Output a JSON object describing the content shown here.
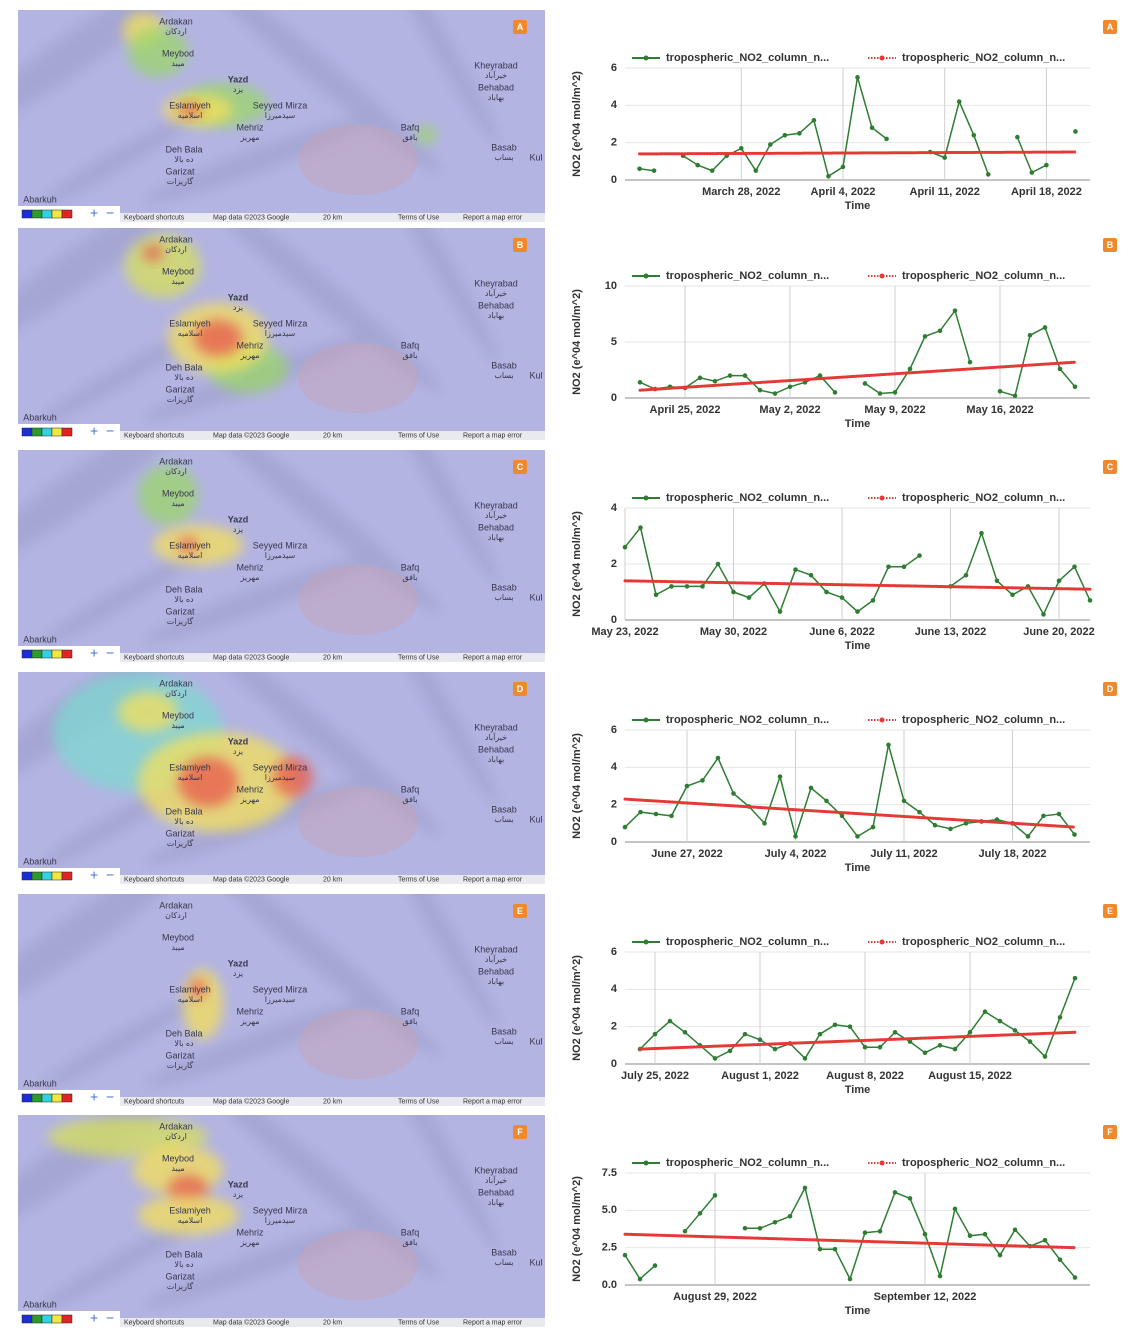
{
  "map": {
    "places": [
      {
        "name": "Ardakan",
        "local": "اردکان"
      },
      {
        "name": "Meybod",
        "local": "میبد"
      },
      {
        "name": "Yazd",
        "local": "یزد"
      },
      {
        "name": "Eslamiyeh",
        "local": "اسلامیه"
      },
      {
        "name": "Seyyed Mirza",
        "local": "سیدمیرزا"
      },
      {
        "name": "Mehriz",
        "local": "مهریز"
      },
      {
        "name": "Deh Bala",
        "local": "ده بالا"
      },
      {
        "name": "Garizat",
        "local": "گاریزات"
      },
      {
        "name": "Abarkuh",
        "local": ""
      },
      {
        "name": "Kheyrabad",
        "local": "خیرآباد"
      },
      {
        "name": "Behabad",
        "local": "بهاباد"
      },
      {
        "name": "Bafq",
        "local": "بافق"
      },
      {
        "name": "Basab",
        "local": "بساب"
      },
      {
        "name": "Kul",
        "local": ""
      }
    ],
    "zoom_in": "+",
    "zoom_out": "−",
    "footer": [
      "Keyboard shortcuts",
      "Map data ©2023 Google",
      "20 km",
      "Terms of Use",
      "Report a map error"
    ]
  },
  "chart_data": [
    {
      "type": "line",
      "label": "A",
      "y_label": "NO2 (e^04 mol/m^2)",
      "x_label": "Time",
      "grid": true,
      "xlim": [
        "2022-03-20",
        "2022-04-21"
      ],
      "ylim": [
        0,
        6
      ],
      "yticks": [
        0,
        2,
        4,
        6
      ],
      "xticks": [
        {
          "value": "2022-03-28",
          "label": "March 28, 2022"
        },
        {
          "value": "2022-04-04",
          "label": "April 4, 2022"
        },
        {
          "value": "2022-04-11",
          "label": "April 11, 2022"
        },
        {
          "value": "2022-04-18",
          "label": "April 18, 2022"
        }
      ],
      "series": [
        {
          "name": "tropospheric_NO2_column_n...",
          "color": "#2e7d32",
          "style": "solid",
          "x": [
            "2022-03-21",
            "2022-03-22",
            "2022-03-23",
            "2022-03-24",
            "2022-03-25",
            "2022-03-26",
            "2022-03-27",
            "2022-03-28",
            "2022-03-29",
            "2022-03-30",
            "2022-03-31",
            "2022-04-01",
            "2022-04-02",
            "2022-04-03",
            "2022-04-04",
            "2022-04-05",
            "2022-04-06",
            "2022-04-07",
            "2022-04-08",
            "2022-04-09",
            "2022-04-10",
            "2022-04-11",
            "2022-04-12",
            "2022-04-13",
            "2022-04-14",
            "2022-04-15",
            "2022-04-16",
            "2022-04-17",
            "2022-04-18",
            "2022-04-19",
            "2022-04-20"
          ],
          "values": [
            0.6,
            0.5,
            null,
            1.3,
            0.8,
            0.5,
            1.3,
            1.7,
            0.5,
            1.9,
            2.4,
            2.5,
            3.2,
            0.2,
            0.7,
            5.5,
            2.8,
            2.2,
            null,
            null,
            1.5,
            1.2,
            4.2,
            2.4,
            0.3,
            null,
            2.3,
            0.4,
            0.8,
            null,
            2.6
          ]
        },
        {
          "name": "tropospheric_NO2_column_n...",
          "color": "#e53935",
          "style": "dotted",
          "x": [
            "2022-03-21",
            "2022-04-20"
          ],
          "values": [
            1.4,
            1.5
          ]
        }
      ]
    },
    {
      "type": "line",
      "label": "B",
      "y_label": "NO2 (e^04 mol/m^2)",
      "x_label": "Time",
      "grid": true,
      "xlim": [
        "2022-04-21",
        "2022-05-22"
      ],
      "ylim": [
        0,
        10
      ],
      "yticks": [
        0,
        5,
        10
      ],
      "xticks": [
        {
          "value": "2022-04-25",
          "label": "April 25, 2022"
        },
        {
          "value": "2022-05-02",
          "label": "May 2, 2022"
        },
        {
          "value": "2022-05-09",
          "label": "May 9, 2022"
        },
        {
          "value": "2022-05-16",
          "label": "May 16, 2022"
        }
      ],
      "series": [
        {
          "name": "tropospheric_NO2_column_n...",
          "color": "#2e7d32",
          "style": "solid",
          "x": [
            "2022-04-22",
            "2022-04-23",
            "2022-04-24",
            "2022-04-25",
            "2022-04-26",
            "2022-04-27",
            "2022-04-28",
            "2022-04-29",
            "2022-04-30",
            "2022-05-01",
            "2022-05-02",
            "2022-05-03",
            "2022-05-04",
            "2022-05-05",
            "2022-05-06",
            "2022-05-07",
            "2022-05-08",
            "2022-05-09",
            "2022-05-10",
            "2022-05-11",
            "2022-05-12",
            "2022-05-13",
            "2022-05-14",
            "2022-05-15",
            "2022-05-16",
            "2022-05-17",
            "2022-05-18",
            "2022-05-19",
            "2022-05-20",
            "2022-05-21"
          ],
          "values": [
            1.4,
            0.8,
            1.0,
            0.9,
            1.8,
            1.5,
            2.0,
            2.0,
            0.7,
            0.4,
            1.0,
            1.4,
            2.0,
            0.5,
            null,
            1.3,
            0.4,
            0.5,
            2.6,
            5.5,
            6.0,
            7.8,
            3.2,
            null,
            0.6,
            0.2,
            5.6,
            6.3,
            2.6,
            1.0
          ]
        },
        {
          "name": "tropospheric_NO2_column_n...",
          "color": "#e53935",
          "style": "dotted",
          "x": [
            "2022-04-22",
            "2022-05-21"
          ],
          "values": [
            0.7,
            3.2
          ]
        }
      ]
    },
    {
      "type": "line",
      "label": "C",
      "y_label": "NO2 (e^04 mol/m^2)",
      "x_label": "Time",
      "grid": true,
      "xlim": [
        "2022-05-23",
        "2022-06-22"
      ],
      "ylim": [
        0,
        4
      ],
      "yticks": [
        0,
        2,
        4
      ],
      "xticks": [
        {
          "value": "2022-05-23",
          "label": "May 23, 2022"
        },
        {
          "value": "2022-05-30",
          "label": "May 30, 2022"
        },
        {
          "value": "2022-06-06",
          "label": "June 6, 2022"
        },
        {
          "value": "2022-06-13",
          "label": "June 13, 2022"
        },
        {
          "value": "2022-06-20",
          "label": "June 20, 2022"
        }
      ],
      "series": [
        {
          "name": "tropospheric_NO2_column_n...",
          "color": "#2e7d32",
          "style": "solid",
          "x": [
            "2022-05-23",
            "2022-05-24",
            "2022-05-25",
            "2022-05-26",
            "2022-05-27",
            "2022-05-28",
            "2022-05-29",
            "2022-05-30",
            "2022-05-31",
            "2022-06-01",
            "2022-06-02",
            "2022-06-03",
            "2022-06-04",
            "2022-06-05",
            "2022-06-06",
            "2022-06-07",
            "2022-06-08",
            "2022-06-09",
            "2022-06-10",
            "2022-06-11",
            "2022-06-12",
            "2022-06-13",
            "2022-06-14",
            "2022-06-15",
            "2022-06-16",
            "2022-06-17",
            "2022-06-18",
            "2022-06-19",
            "2022-06-20",
            "2022-06-21",
            "2022-06-22"
          ],
          "values": [
            2.6,
            3.3,
            0.9,
            1.2,
            1.2,
            1.2,
            2.0,
            1.0,
            0.8,
            1.3,
            0.3,
            1.8,
            1.6,
            1.0,
            0.8,
            0.3,
            0.7,
            1.9,
            1.9,
            2.3,
            null,
            1.2,
            1.6,
            3.1,
            1.4,
            0.9,
            1.2,
            0.2,
            1.4,
            1.9,
            0.7
          ]
        },
        {
          "name": "tropospheric_NO2_column_n...",
          "color": "#e53935",
          "style": "dotted",
          "x": [
            "2022-05-23",
            "2022-06-22"
          ],
          "values": [
            1.4,
            1.1
          ]
        }
      ]
    },
    {
      "type": "line",
      "label": "D",
      "y_label": "NO2 (e^04 mol/m^2)",
      "x_label": "Time",
      "grid": true,
      "xlim": [
        "2022-06-23",
        "2022-07-23"
      ],
      "ylim": [
        0,
        6
      ],
      "yticks": [
        0,
        2,
        4,
        6
      ],
      "xticks": [
        {
          "value": "2022-06-27",
          "label": "June 27, 2022"
        },
        {
          "value": "2022-07-04",
          "label": "July 4, 2022"
        },
        {
          "value": "2022-07-11",
          "label": "July 11, 2022"
        },
        {
          "value": "2022-07-18",
          "label": "July 18, 2022"
        }
      ],
      "series": [
        {
          "name": "tropospheric_NO2_column_n...",
          "color": "#2e7d32",
          "style": "solid",
          "x": [
            "2022-06-23",
            "2022-06-24",
            "2022-06-25",
            "2022-06-26",
            "2022-06-27",
            "2022-06-28",
            "2022-06-29",
            "2022-06-30",
            "2022-07-01",
            "2022-07-02",
            "2022-07-03",
            "2022-07-04",
            "2022-07-05",
            "2022-07-06",
            "2022-07-07",
            "2022-07-08",
            "2022-07-09",
            "2022-07-10",
            "2022-07-11",
            "2022-07-12",
            "2022-07-13",
            "2022-07-14",
            "2022-07-15",
            "2022-07-16",
            "2022-07-17",
            "2022-07-18",
            "2022-07-19",
            "2022-07-20",
            "2022-07-21",
            "2022-07-22"
          ],
          "values": [
            0.8,
            1.6,
            1.5,
            1.4,
            3.0,
            3.3,
            4.5,
            2.6,
            1.9,
            1.0,
            3.5,
            0.3,
            2.9,
            2.2,
            1.4,
            0.3,
            0.8,
            5.2,
            2.2,
            1.6,
            0.9,
            0.7,
            1.0,
            1.1,
            1.2,
            1.0,
            0.3,
            1.4,
            1.5,
            0.4
          ]
        },
        {
          "name": "tropospheric_NO2_column_n...",
          "color": "#e53935",
          "style": "dotted",
          "x": [
            "2022-06-23",
            "2022-07-22"
          ],
          "values": [
            2.3,
            0.8
          ]
        }
      ]
    },
    {
      "type": "line",
      "label": "E",
      "y_label": "NO2 (e^04 mol/m^2)",
      "x_label": "Time",
      "grid": true,
      "xlim": [
        "2022-07-23",
        "2022-08-23"
      ],
      "ylim": [
        0,
        6
      ],
      "yticks": [
        0,
        2,
        4,
        6
      ],
      "xticks": [
        {
          "value": "2022-07-25",
          "label": "July 25, 2022"
        },
        {
          "value": "2022-08-01",
          "label": "August 1, 2022"
        },
        {
          "value": "2022-08-08",
          "label": "August 8, 2022"
        },
        {
          "value": "2022-08-15",
          "label": "August 15, 2022"
        }
      ],
      "series": [
        {
          "name": "tropospheric_NO2_column_n...",
          "color": "#2e7d32",
          "style": "solid",
          "x": [
            "2022-07-24",
            "2022-07-25",
            "2022-07-26",
            "2022-07-27",
            "2022-07-28",
            "2022-07-29",
            "2022-07-30",
            "2022-07-31",
            "2022-08-01",
            "2022-08-02",
            "2022-08-03",
            "2022-08-04",
            "2022-08-05",
            "2022-08-06",
            "2022-08-07",
            "2022-08-08",
            "2022-08-09",
            "2022-08-10",
            "2022-08-11",
            "2022-08-12",
            "2022-08-13",
            "2022-08-14",
            "2022-08-15",
            "2022-08-16",
            "2022-08-17",
            "2022-08-18",
            "2022-08-19",
            "2022-08-20",
            "2022-08-21",
            "2022-08-22"
          ],
          "values": [
            0.8,
            1.6,
            2.3,
            1.7,
            1.0,
            0.3,
            0.7,
            1.6,
            1.3,
            0.8,
            1.1,
            0.3,
            1.6,
            2.1,
            2.0,
            0.9,
            0.9,
            1.7,
            1.2,
            0.6,
            1.0,
            0.8,
            1.7,
            2.8,
            2.3,
            1.8,
            1.2,
            0.4,
            2.5,
            4.6
          ]
        },
        {
          "name": "tropospheric_NO2_column_n...",
          "color": "#e53935",
          "style": "dotted",
          "x": [
            "2022-07-24",
            "2022-08-22"
          ],
          "values": [
            0.8,
            1.7
          ]
        }
      ]
    },
    {
      "type": "line",
      "label": "F",
      "y_label": "NO2 (e^04 mol/m^2)",
      "x_label": "Time",
      "grid": true,
      "xlim": [
        "2022-08-23",
        "2022-09-23"
      ],
      "ylim": [
        0,
        7.5
      ],
      "yticks": [
        {
          "value": 0,
          "label": "0.0"
        },
        2.5,
        {
          "value": 5,
          "label": "5.0"
        },
        7.5
      ],
      "xticks": [
        {
          "value": "2022-08-29",
          "label": "August 29, 2022"
        },
        {
          "value": "2022-09-12",
          "label": "September 12, 2022"
        }
      ],
      "series": [
        {
          "name": "tropospheric_NO2_column_n...",
          "color": "#2e7d32",
          "style": "solid",
          "x": [
            "2022-08-23",
            "2022-08-24",
            "2022-08-25",
            "2022-08-26",
            "2022-08-27",
            "2022-08-28",
            "2022-08-29",
            "2022-08-30",
            "2022-08-31",
            "2022-09-01",
            "2022-09-02",
            "2022-09-03",
            "2022-09-04",
            "2022-09-05",
            "2022-09-06",
            "2022-09-07",
            "2022-09-08",
            "2022-09-09",
            "2022-09-10",
            "2022-09-11",
            "2022-09-12",
            "2022-09-13",
            "2022-09-14",
            "2022-09-15",
            "2022-09-16",
            "2022-09-17",
            "2022-09-18",
            "2022-09-19",
            "2022-09-20",
            "2022-09-21",
            "2022-09-22"
          ],
          "values": [
            2.0,
            0.4,
            1.3,
            null,
            3.6,
            4.8,
            6.0,
            null,
            3.8,
            3.8,
            4.2,
            4.6,
            6.5,
            2.4,
            2.4,
            0.4,
            3.5,
            3.6,
            6.2,
            5.8,
            3.4,
            0.6,
            5.1,
            3.3,
            3.4,
            2.0,
            3.7,
            2.6,
            3.0,
            1.7,
            0.5
          ]
        },
        {
          "name": "tropospheric_NO2_column_n...",
          "color": "#e53935",
          "style": "dotted",
          "x": [
            "2022-08-23",
            "2022-09-22"
          ],
          "values": [
            3.4,
            2.5
          ]
        }
      ]
    }
  ]
}
